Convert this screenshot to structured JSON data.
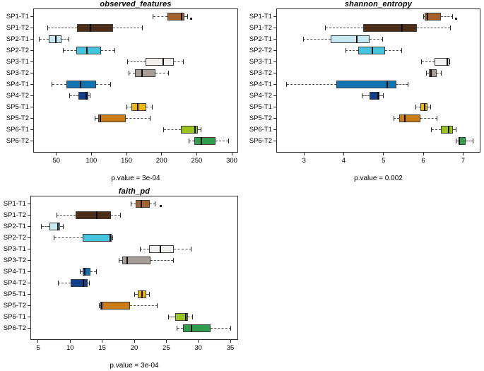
{
  "figure": {
    "background": "#ffffff"
  },
  "categories": [
    "SP1-T1",
    "SP1-T2",
    "SP2-T1",
    "SP2-T2",
    "SP3-T1",
    "SP3-T2",
    "SP4-T1",
    "SP4-T2",
    "SP5-T1",
    "SP5-T2",
    "SP6-T1",
    "SP6-T2"
  ],
  "palette": [
    "#A5622D",
    "#4A2E17",
    "#C7E9F1",
    "#44C5DD",
    "#F2F1F0",
    "#A79E99",
    "#1273B2",
    "#133E8C",
    "#EDB512",
    "#CD7B14",
    "#9CC41F",
    "#2F9E4D"
  ],
  "chart_data": [
    {
      "type": "boxplot",
      "orientation": "horizontal",
      "title": "observed_features",
      "caption": "p.value = 3e-04",
      "p_value": "3e-04",
      "x_ticks": [
        50,
        100,
        150,
        200,
        250,
        300
      ],
      "x_range": [
        18,
        308
      ],
      "grid": false,
      "boxes": [
        {
          "category": "SP1-T1",
          "color": "#A5622D",
          "whisker_low": 188,
          "q1": 208,
          "median": 228,
          "q3": 232,
          "whisker_high": 237,
          "outliers": [
            242
          ]
        },
        {
          "category": "SP1-T2",
          "color": "#4A2E17",
          "whisker_low": 38,
          "q1": 79,
          "median": 99,
          "q3": 131,
          "whisker_high": 173,
          "outliers": []
        },
        {
          "category": "SP2-T1",
          "color": "#C7E9F1",
          "whisker_low": 26,
          "q1": 39,
          "median": 49,
          "q3": 57,
          "whisker_high": 68,
          "outliers": []
        },
        {
          "category": "SP2-T2",
          "color": "#44C5DD",
          "whisker_low": 60,
          "q1": 78,
          "median": 94,
          "q3": 114,
          "whisker_high": 133,
          "outliers": []
        },
        {
          "category": "SP3-T1",
          "color": "#F2F1F0",
          "whisker_low": 151,
          "q1": 177,
          "median": 202,
          "q3": 217,
          "whisker_high": 231,
          "outliers": []
        },
        {
          "category": "SP3-T2",
          "color": "#A79E99",
          "whisker_low": 153,
          "q1": 162,
          "median": 172,
          "q3": 191,
          "whisker_high": 210,
          "outliers": []
        },
        {
          "category": "SP4-T1",
          "color": "#1273B2",
          "whisker_low": 44,
          "q1": 64,
          "median": 84,
          "q3": 107,
          "whisker_high": 127,
          "outliers": []
        },
        {
          "category": "SP4-T2",
          "color": "#133E8C",
          "whisker_low": 69,
          "q1": 81,
          "median": 93,
          "q3": 96,
          "whisker_high": 98,
          "outliers": []
        },
        {
          "category": "SP5-T1",
          "color": "#EDB512",
          "whisker_low": 150,
          "q1": 157,
          "median": 166,
          "q3": 178,
          "whisker_high": 187,
          "outliers": []
        },
        {
          "category": "SP5-T2",
          "color": "#CD7B14",
          "whisker_low": 105,
          "q1": 110,
          "median": 113,
          "q3": 149,
          "whisker_high": 184,
          "outliers": []
        },
        {
          "category": "SP6-T1",
          "color": "#9CC41F",
          "whisker_low": 203,
          "q1": 227,
          "median": 248,
          "q3": 252,
          "whisker_high": 256,
          "outliers": []
        },
        {
          "category": "SP6-T2",
          "color": "#2F9E4D",
          "whisker_low": 239,
          "q1": 247,
          "median": 257,
          "q3": 277,
          "whisker_high": 295,
          "outliers": []
        }
      ]
    },
    {
      "type": "boxplot",
      "orientation": "horizontal",
      "title": "shannon_entropy",
      "caption": "p.value = 0.002",
      "p_value": "0.002",
      "x_ticks": [
        3,
        4,
        5,
        6,
        7
      ],
      "x_range": [
        2.32,
        7.42
      ],
      "grid": false,
      "boxes": [
        {
          "category": "SP1-T1",
          "color": "#A5622D",
          "whisker_low": 6.0,
          "q1": 6.04,
          "median": 6.11,
          "q3": 6.44,
          "whisker_high": 6.74,
          "outliers": [
            6.82
          ]
        },
        {
          "category": "SP1-T2",
          "color": "#4A2E17",
          "whisker_low": 3.54,
          "q1": 4.49,
          "median": 5.47,
          "q3": 5.84,
          "whisker_high": 6.68,
          "outliers": []
        },
        {
          "category": "SP2-T1",
          "color": "#C7E9F1",
          "whisker_low": 2.98,
          "q1": 3.67,
          "median": 4.33,
          "q3": 4.65,
          "whisker_high": 4.98,
          "outliers": []
        },
        {
          "category": "SP2-T2",
          "color": "#44C5DD",
          "whisker_low": 4.05,
          "q1": 4.37,
          "median": 4.72,
          "q3": 5.04,
          "whisker_high": 5.46,
          "outliers": []
        },
        {
          "category": "SP3-T1",
          "color": "#F2F1F0",
          "whisker_low": 5.96,
          "q1": 6.28,
          "median": 6.61,
          "q3": 6.65,
          "whisker_high": 6.67,
          "outliers": []
        },
        {
          "category": "SP3-T2",
          "color": "#A79E99",
          "whisker_low": 6.07,
          "q1": 6.14,
          "median": 6.19,
          "q3": 6.33,
          "whisker_high": 6.46,
          "outliers": []
        },
        {
          "category": "SP4-T1",
          "color": "#1273B2",
          "whisker_low": 2.56,
          "q1": 3.82,
          "median": 5.09,
          "q3": 5.33,
          "whisker_high": 5.61,
          "outliers": []
        },
        {
          "category": "SP4-T2",
          "color": "#133E8C",
          "whisker_low": 4.47,
          "q1": 4.65,
          "median": 4.86,
          "q3": 4.89,
          "whisker_high": 5.0,
          "outliers": []
        },
        {
          "category": "SP5-T1",
          "color": "#EDB512",
          "whisker_low": 5.81,
          "q1": 5.93,
          "median": 6.04,
          "q3": 6.11,
          "whisker_high": 6.18,
          "outliers": []
        },
        {
          "category": "SP5-T2",
          "color": "#CD7B14",
          "whisker_low": 5.26,
          "q1": 5.4,
          "median": 5.54,
          "q3": 5.93,
          "whisker_high": 6.35,
          "outliers": []
        },
        {
          "category": "SP6-T1",
          "color": "#9CC41F",
          "whisker_low": 6.21,
          "q1": 6.44,
          "median": 6.63,
          "q3": 6.74,
          "whisker_high": 6.82,
          "outliers": []
        },
        {
          "category": "SP6-T2",
          "color": "#2F9E4D",
          "whisker_low": 6.82,
          "q1": 6.89,
          "median": 6.91,
          "q3": 7.07,
          "whisker_high": 7.26,
          "outliers": []
        }
      ]
    },
    {
      "type": "boxplot",
      "orientation": "horizontal",
      "title": "faith_pd",
      "caption": "p.value = 3e-04",
      "p_value": "3e-04",
      "x_ticks": [
        5,
        10,
        15,
        20,
        25,
        30,
        35
      ],
      "x_range": [
        3.9,
        36.1
      ],
      "grid": false,
      "boxes": [
        {
          "category": "SP1-T1",
          "color": "#A5622D",
          "whisker_low": 19.5,
          "q1": 20.2,
          "median": 21.1,
          "q3": 22.4,
          "whisker_high": 23.3,
          "outliers": [
            24.1
          ]
        },
        {
          "category": "SP1-T2",
          "color": "#4A2E17",
          "whisker_low": 7.9,
          "q1": 10.9,
          "median": 14.2,
          "q3": 16.4,
          "whisker_high": 17.8,
          "outliers": []
        },
        {
          "category": "SP2-T1",
          "color": "#C7E9F1",
          "whisker_low": 5.5,
          "q1": 6.8,
          "median": 8.1,
          "q3": 8.4,
          "whisker_high": 8.9,
          "outliers": []
        },
        {
          "category": "SP2-T2",
          "color": "#44C5DD",
          "whisker_low": 7.5,
          "q1": 12.0,
          "median": 16.3,
          "q3": 16.5,
          "whisker_high": 16.6,
          "outliers": []
        },
        {
          "category": "SP3-T1",
          "color": "#F2F1F0",
          "whisker_low": 20.9,
          "q1": 22.3,
          "median": 24.1,
          "q3": 26.2,
          "whisker_high": 28.9,
          "outliers": []
        },
        {
          "category": "SP3-T2",
          "color": "#A79E99",
          "whisker_low": 17.6,
          "q1": 18.1,
          "median": 18.9,
          "q3": 22.5,
          "whisker_high": 26.1,
          "outliers": []
        },
        {
          "category": "SP4-T1",
          "color": "#1273B2",
          "whisker_low": 11.6,
          "q1": 11.9,
          "median": 12.3,
          "q3": 13.2,
          "whisker_high": 14.1,
          "outliers": []
        },
        {
          "category": "SP4-T2",
          "color": "#133E8C",
          "whisker_low": 8.1,
          "q1": 10.1,
          "median": 12.1,
          "q3": 12.7,
          "whisker_high": 13.0,
          "outliers": []
        },
        {
          "category": "SP5-T1",
          "color": "#EDB512",
          "whisker_low": 20.0,
          "q1": 20.5,
          "median": 21.2,
          "q3": 21.9,
          "whisker_high": 22.4,
          "outliers": []
        },
        {
          "category": "SP5-T2",
          "color": "#CD7B14",
          "whisker_low": 14.5,
          "q1": 14.7,
          "median": 14.9,
          "q3": 19.3,
          "whisker_high": 23.6,
          "outliers": []
        },
        {
          "category": "SP6-T1",
          "color": "#9CC41F",
          "whisker_low": 25.3,
          "q1": 26.4,
          "median": 28.0,
          "q3": 28.4,
          "whisker_high": 29.1,
          "outliers": []
        },
        {
          "category": "SP6-T2",
          "color": "#2F9E4D",
          "whisker_low": 26.7,
          "q1": 27.6,
          "median": 28.9,
          "q3": 31.9,
          "whisker_high": 35.1,
          "outliers": []
        }
      ]
    }
  ]
}
